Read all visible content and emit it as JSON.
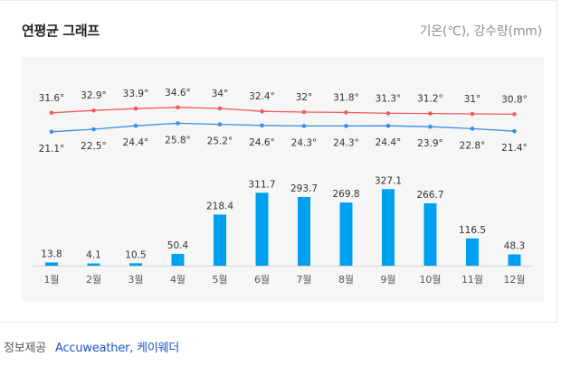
{
  "header": {
    "title": "연평균 그래프",
    "legend_text": "기온(℃), 강수량(mm)"
  },
  "footer": {
    "label": "정보제공",
    "sources": [
      "Accuweather",
      "케이웨더"
    ],
    "separator": ", "
  },
  "colors": {
    "max_temp_line": "#f25a5a",
    "min_temp_line": "#3a8ee6",
    "precip_bar": "#00a0f0",
    "chart_bg": "#f6f6f6"
  },
  "chart_data": [
    {
      "type": "line",
      "categories": [
        "1월",
        "2월",
        "3월",
        "4월",
        "5월",
        "6월",
        "7월",
        "8월",
        "9월",
        "10월",
        "11월",
        "12월"
      ],
      "series": [
        {
          "values": [
            31.6,
            32.9,
            33.9,
            34.6,
            34,
            32.4,
            32,
            31.8,
            31.3,
            31.2,
            31,
            30.8
          ],
          "labels": [
            "31.6°",
            "32.9°",
            "33.9°",
            "34.6°",
            "34°",
            "32.4°",
            "32°",
            "31.8°",
            "31.3°",
            "31.2°",
            "31°",
            "30.8°"
          ]
        },
        {
          "values": [
            21.1,
            22.5,
            24.4,
            25.8,
            25.2,
            24.6,
            24.3,
            24.3,
            24.4,
            23.9,
            22.8,
            21.4
          ],
          "labels": [
            "21.1°",
            "22.5°",
            "24.4°",
            "25.8°",
            "25.2°",
            "24.6°",
            "24.3°",
            "24.3°",
            "24.4°",
            "23.9°",
            "22.8°",
            "21.4°"
          ]
        }
      ]
    },
    {
      "type": "bar",
      "categories": [
        "1월",
        "2월",
        "3월",
        "4월",
        "5월",
        "6월",
        "7월",
        "8월",
        "9월",
        "10월",
        "11월",
        "12월"
      ],
      "values": [
        13.8,
        4.1,
        10.5,
        50.4,
        218.4,
        311.7,
        293.7,
        269.8,
        327.1,
        266.7,
        116.5,
        48.3
      ],
      "labels": [
        "13.8",
        "4.1",
        "10.5",
        "50.4",
        "218.4",
        "311.7",
        "293.7",
        "269.8",
        "327.1",
        "266.7",
        "116.5",
        "48.3"
      ]
    }
  ]
}
